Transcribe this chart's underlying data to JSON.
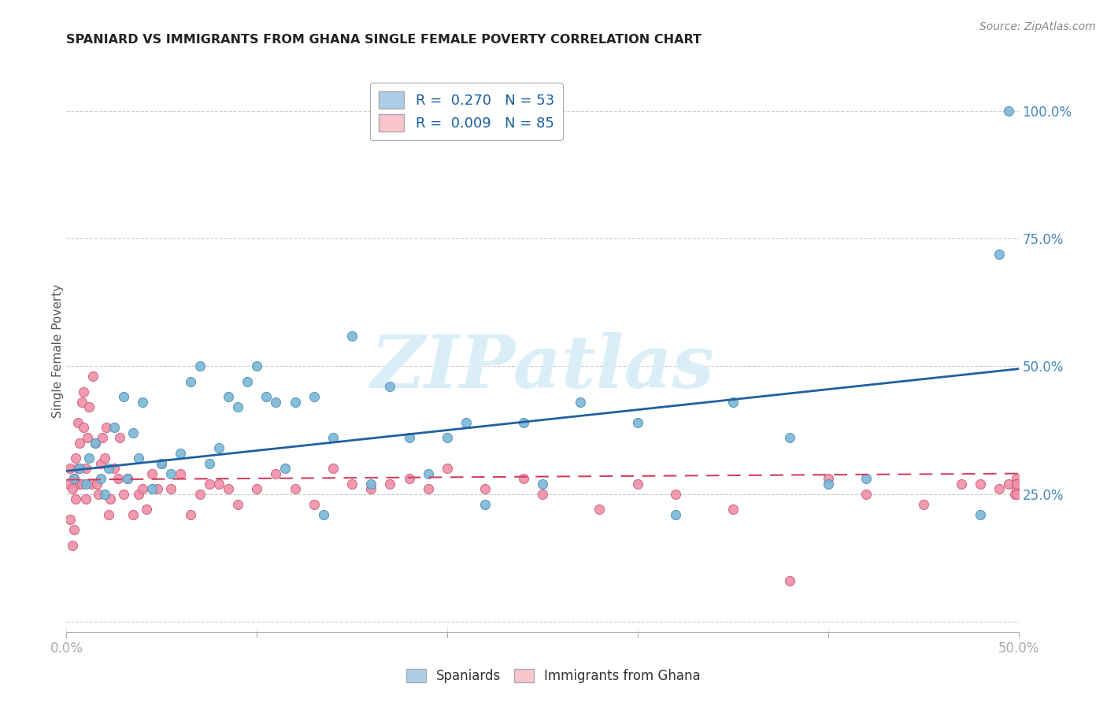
{
  "title": "SPANIARD VS IMMIGRANTS FROM GHANA SINGLE FEMALE POVERTY CORRELATION CHART",
  "source": "Source: ZipAtlas.com",
  "ylabel": "Single Female Poverty",
  "xlim": [
    0.0,
    0.5
  ],
  "ylim": [
    -0.02,
    1.08
  ],
  "yticks": [
    0.0,
    0.25,
    0.5,
    0.75,
    1.0
  ],
  "ytick_labels": [
    "",
    "25.0%",
    "50.0%",
    "75.0%",
    "100.0%"
  ],
  "xticks": [
    0.0,
    0.1,
    0.2,
    0.3,
    0.4,
    0.5
  ],
  "xtick_labels": [
    "0.0%",
    "",
    "",
    "",
    "",
    "50.0%"
  ],
  "legend_entries": [
    {
      "label": "R =  0.270   N = 53",
      "color": "#aecde8"
    },
    {
      "label": "R =  0.009   N = 85",
      "color": "#f9c6d0"
    }
  ],
  "spaniards_color": "#7ab8d8",
  "spaniards_edge": "#5590b8",
  "ghana_color": "#f090a8",
  "ghana_edge": "#d06080",
  "trendline_spaniard_color": "#2060a0",
  "trendline_ghana_color": "#d04060",
  "watermark": "ZIPatlas",
  "watermark_color": "#daeef8",
  "spaniards_x": [
    0.004,
    0.007,
    0.01,
    0.012,
    0.015,
    0.018,
    0.02,
    0.022,
    0.025,
    0.03,
    0.032,
    0.035,
    0.038,
    0.04,
    0.045,
    0.05,
    0.055,
    0.06,
    0.065,
    0.07,
    0.075,
    0.08,
    0.085,
    0.09,
    0.095,
    0.1,
    0.105,
    0.11,
    0.115,
    0.12,
    0.13,
    0.135,
    0.14,
    0.15,
    0.16,
    0.17,
    0.18,
    0.19,
    0.2,
    0.21,
    0.22,
    0.24,
    0.25,
    0.27,
    0.3,
    0.32,
    0.35,
    0.38,
    0.4,
    0.42,
    0.48,
    0.49,
    0.495
  ],
  "spaniards_y": [
    0.28,
    0.3,
    0.27,
    0.32,
    0.35,
    0.28,
    0.25,
    0.3,
    0.38,
    0.44,
    0.28,
    0.37,
    0.32,
    0.43,
    0.26,
    0.31,
    0.29,
    0.33,
    0.47,
    0.5,
    0.31,
    0.34,
    0.44,
    0.42,
    0.47,
    0.5,
    0.44,
    0.43,
    0.3,
    0.43,
    0.44,
    0.21,
    0.36,
    0.56,
    0.27,
    0.46,
    0.36,
    0.29,
    0.36,
    0.39,
    0.23,
    0.39,
    0.27,
    0.43,
    0.39,
    0.21,
    0.43,
    0.36,
    0.27,
    0.28,
    0.21,
    0.72,
    1.0
  ],
  "ghana_x": [
    0.001,
    0.002,
    0.002,
    0.003,
    0.003,
    0.004,
    0.004,
    0.005,
    0.005,
    0.006,
    0.006,
    0.007,
    0.007,
    0.008,
    0.008,
    0.009,
    0.009,
    0.01,
    0.01,
    0.011,
    0.012,
    0.013,
    0.014,
    0.015,
    0.016,
    0.017,
    0.018,
    0.019,
    0.02,
    0.021,
    0.022,
    0.023,
    0.025,
    0.027,
    0.028,
    0.03,
    0.032,
    0.035,
    0.038,
    0.04,
    0.042,
    0.045,
    0.048,
    0.05,
    0.055,
    0.06,
    0.065,
    0.07,
    0.075,
    0.08,
    0.085,
    0.09,
    0.1,
    0.11,
    0.12,
    0.13,
    0.14,
    0.15,
    0.16,
    0.17,
    0.18,
    0.19,
    0.2,
    0.22,
    0.24,
    0.25,
    0.28,
    0.3,
    0.32,
    0.35,
    0.38,
    0.4,
    0.42,
    0.45,
    0.47,
    0.48,
    0.49,
    0.495,
    0.498,
    0.499,
    0.499,
    0.499,
    0.499,
    0.499,
    0.499
  ],
  "ghana_y": [
    0.27,
    0.3,
    0.2,
    0.15,
    0.26,
    0.28,
    0.18,
    0.24,
    0.32,
    0.3,
    0.39,
    0.27,
    0.35,
    0.27,
    0.43,
    0.45,
    0.38,
    0.24,
    0.3,
    0.36,
    0.42,
    0.27,
    0.48,
    0.35,
    0.27,
    0.25,
    0.31,
    0.36,
    0.32,
    0.38,
    0.21,
    0.24,
    0.3,
    0.28,
    0.36,
    0.25,
    0.28,
    0.21,
    0.25,
    0.26,
    0.22,
    0.29,
    0.26,
    0.31,
    0.26,
    0.29,
    0.21,
    0.25,
    0.27,
    0.27,
    0.26,
    0.23,
    0.26,
    0.29,
    0.26,
    0.23,
    0.3,
    0.27,
    0.26,
    0.27,
    0.28,
    0.26,
    0.3,
    0.26,
    0.28,
    0.25,
    0.22,
    0.27,
    0.25,
    0.22,
    0.08,
    0.28,
    0.25,
    0.23,
    0.27,
    0.27,
    0.26,
    0.27,
    0.25,
    0.28,
    0.27,
    0.26,
    0.27,
    0.25,
    0.27
  ]
}
